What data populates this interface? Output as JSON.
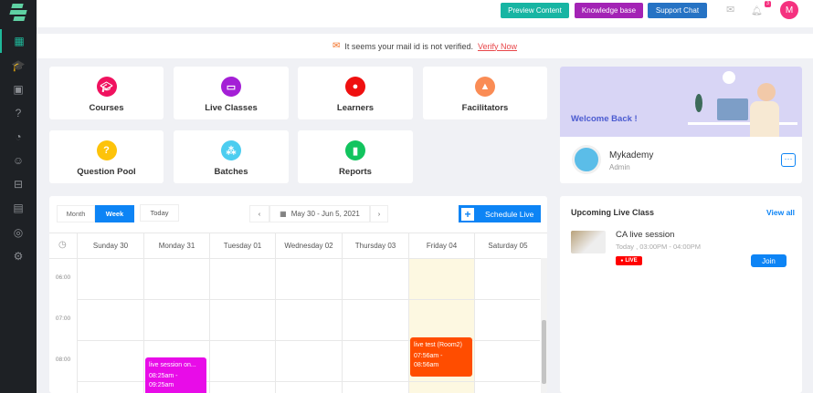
{
  "sidebar": {
    "items": [
      "dashboard-icon",
      "graduation-cap-icon",
      "calendar-icon",
      "question-icon",
      "pie-chart-icon",
      "user-icon",
      "facilitator-icon",
      "clipboard-icon",
      "globe-icon",
      "gear-icon"
    ],
    "active": 0
  },
  "topbar": {
    "buttons": [
      {
        "label": "Preview Content",
        "color": "#17b5a3"
      },
      {
        "label": "Knowledge base",
        "color": "#a323b5"
      },
      {
        "label": "Support Chat",
        "color": "#2673c4"
      }
    ],
    "notification_count": "3",
    "avatar_letter": "M",
    "avatar_color": "#f5317f"
  },
  "banner": {
    "message": "It seems your mail id is not verified.",
    "link": "Verify Now"
  },
  "tiles": [
    {
      "label": "Courses",
      "icon": "graduation-cap-icon",
      "color": "#f0125f"
    },
    {
      "label": "Live Classes",
      "icon": "monitor-icon",
      "color": "#a41fd6"
    },
    {
      "label": "Learners",
      "icon": "user-icon",
      "color": "#ef1010"
    },
    {
      "label": "Facilitators",
      "icon": "podium-icon",
      "color": "#fa8c55"
    },
    {
      "label": "Question Pool",
      "icon": "question-icon",
      "color": "#fdc30a"
    },
    {
      "label": "Batches",
      "icon": "group-icon",
      "color": "#4ccdf0"
    },
    {
      "label": "Reports",
      "icon": "bar-chart-icon",
      "color": "#12c45e"
    }
  ],
  "calendar": {
    "views": [
      "Month",
      "Week"
    ],
    "active_view": "Week",
    "today": "Today",
    "range": "May 30 - Jun 5, 2021",
    "schedule": "Schedule Live",
    "days": [
      "Sunday 30",
      "Monday 31",
      "Tuesday 01",
      "Wednesday 02",
      "Thursday 03",
      "Friday 04",
      "Saturday 05"
    ],
    "today_index": 5,
    "times": [
      "06:00",
      "07:00",
      "08:00"
    ],
    "events": [
      {
        "title": "live session on...",
        "time1": "08:25am -",
        "time2": "09:25am",
        "day": 1,
        "color": "#e80ce8"
      },
      {
        "title": "live test (Room2)",
        "time1": "07:56am -",
        "time2": "08:56am",
        "day": 5,
        "color": "#ff4d00"
      }
    ]
  },
  "welcome": {
    "title": "Welcome Back !",
    "name": "Mykademy",
    "role": "Admin"
  },
  "upcoming": {
    "title": "Upcoming Live Class",
    "view_all": "View all",
    "items": [
      {
        "title": "CA live session",
        "time": "Today , 03:00PM - 04:00PM",
        "badge": "LIVE",
        "join": "Join"
      }
    ]
  }
}
